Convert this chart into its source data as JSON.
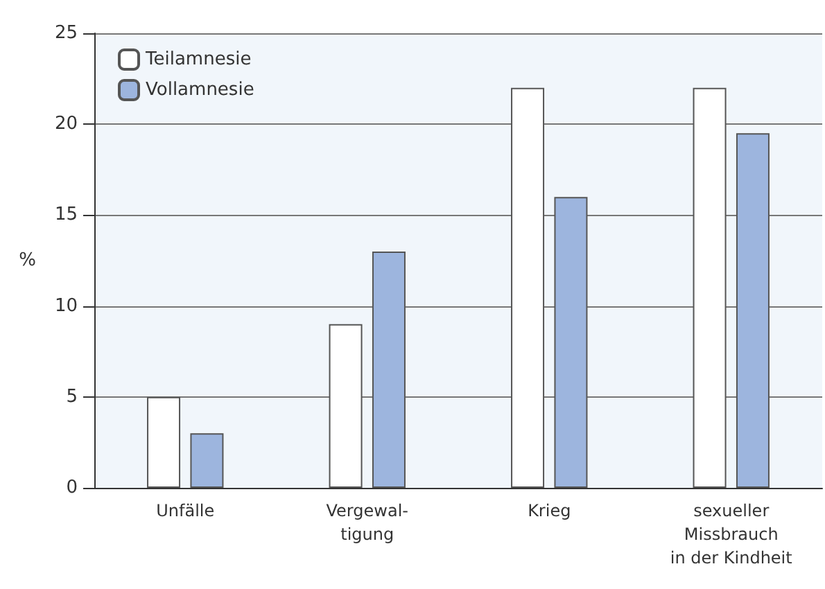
{
  "chart_data": {
    "type": "bar",
    "ylabel": "%",
    "categories": [
      "Unfälle",
      "Vergewal-\ntigung",
      "Krieg",
      "sexueller\nMissbrauch\nin der Kindheit"
    ],
    "series": [
      {
        "name": "Teilamnesie",
        "color": "#ffffff",
        "values": [
          5,
          9,
          22,
          22
        ]
      },
      {
        "name": "Vollamnesie",
        "color": "#9db5de",
        "values": [
          3,
          13,
          16,
          19.5
        ]
      }
    ],
    "ylim": [
      0,
      25
    ],
    "yticks": [
      0,
      5,
      10,
      15,
      20,
      25
    ],
    "grid": "y",
    "legend": "top left"
  }
}
